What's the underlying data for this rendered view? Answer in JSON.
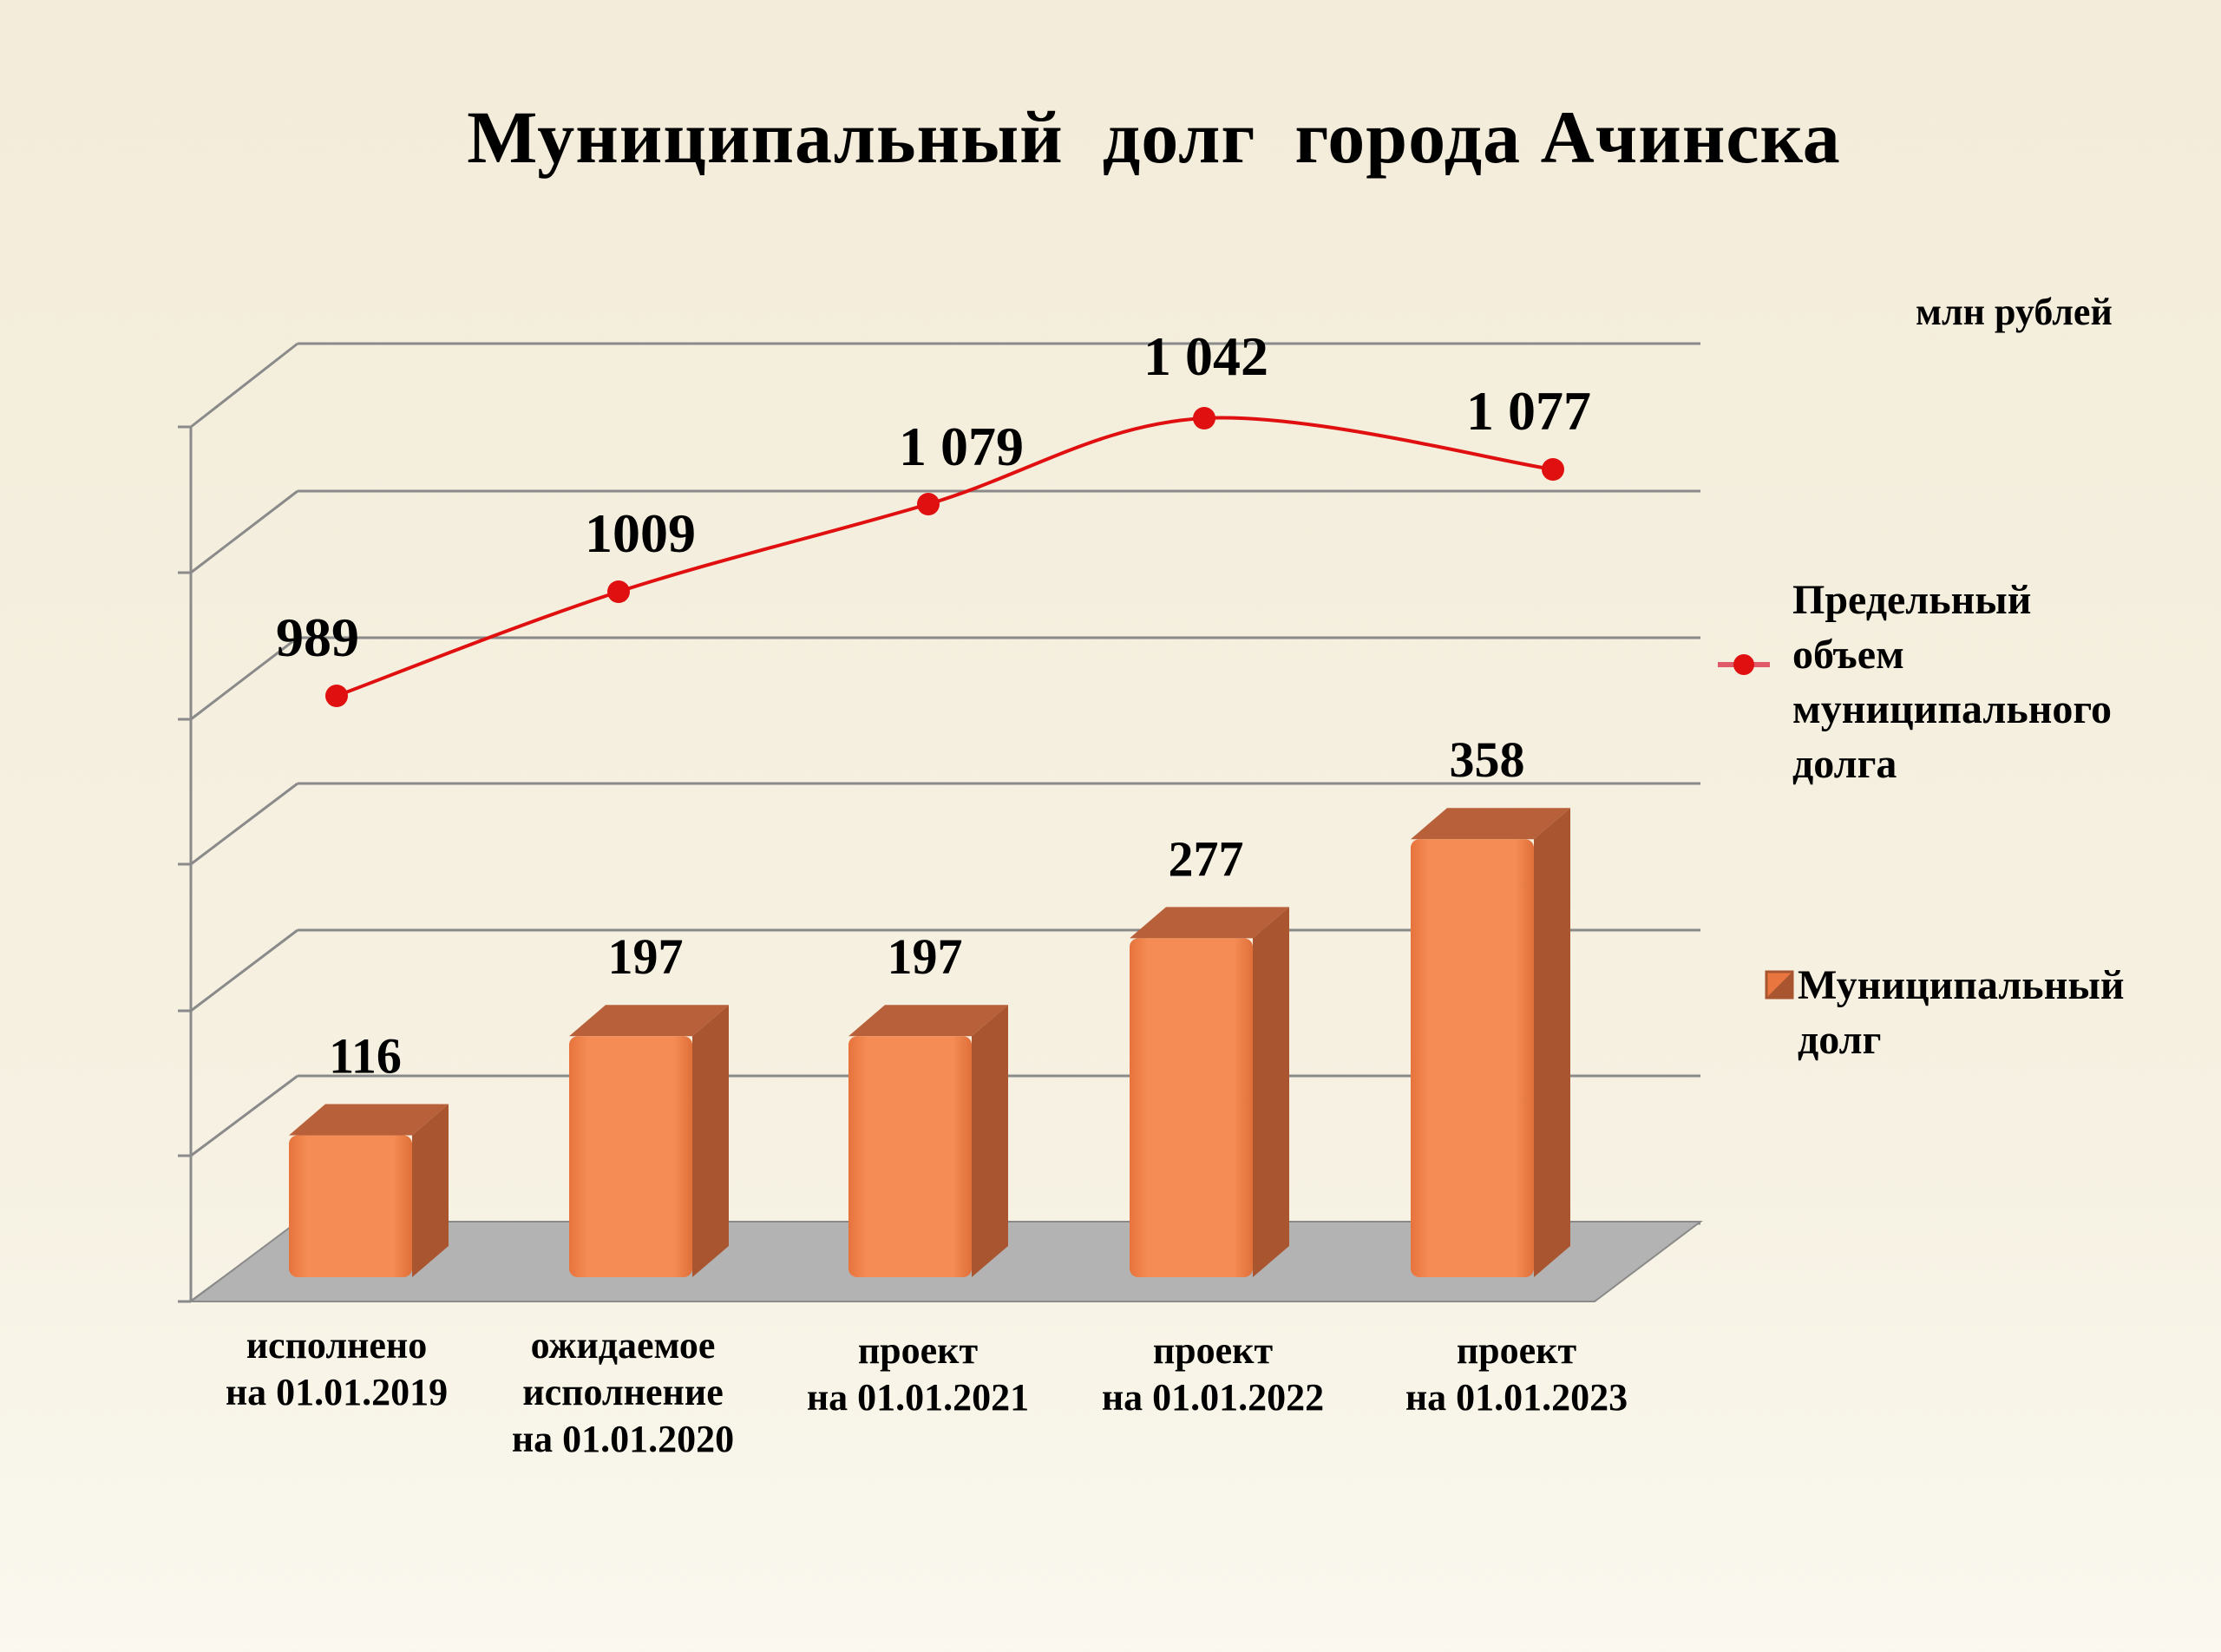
{
  "chart_data": {
    "type": "bar+line",
    "title": "Муниципальный  долг  города Ачинска",
    "units": "млн рублей",
    "categories": [
      [
        "исполнено",
        "на 01.01.2019"
      ],
      [
        "ожидаемое",
        "исполнение",
        "на 01.01.2020"
      ],
      [
        "проект",
        "на 01.01.2021"
      ],
      [
        "проект",
        "на 01.01.2022"
      ],
      [
        "проект",
        "на 01.01.2023"
      ]
    ],
    "series": [
      {
        "name": "Муниципальный долг",
        "type": "bar",
        "values": [
          116,
          197,
          197,
          277,
          358
        ],
        "labels": [
          "116",
          "197",
          "197",
          "277",
          "358"
        ],
        "color": "#f0844c",
        "side_color": "#a85530"
      },
      {
        "name": "Предельный объем муниципального долга",
        "type": "line",
        "values": [
          989,
          1009,
          1079,
          1042,
          1077
        ],
        "labels": [
          "989",
          "1009",
          "1 079",
          "1 042",
          "1 077"
        ],
        "color": "#e01010"
      }
    ],
    "legend": {
      "position": "right",
      "line_label": [
        "Предельный",
        "объем",
        "муниципального",
        "долга"
      ],
      "bar_label": [
        "Муниципальный",
        "долг"
      ]
    },
    "grid": true
  }
}
